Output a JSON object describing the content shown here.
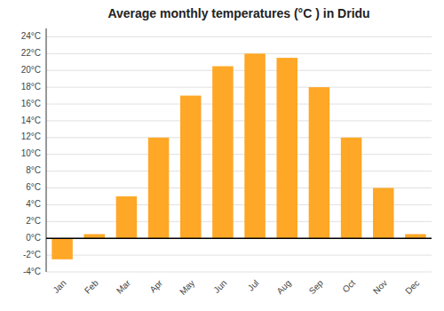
{
  "chart_data": {
    "type": "bar",
    "title": "Average monthly temperatures (°C ) in Dridu",
    "categories": [
      "Jan",
      "Feb",
      "Mar",
      "Apr",
      "May",
      "Jun",
      "Jul",
      "Aug",
      "Sep",
      "Oct",
      "Nov",
      "Dec"
    ],
    "values": [
      -2.5,
      0.5,
      5.0,
      12.0,
      17.0,
      20.5,
      22.0,
      21.5,
      18.0,
      12.0,
      6.0,
      0.5
    ],
    "color": "#FFA726",
    "ylim": [
      -4,
      25
    ],
    "yticks": [
      {
        "value": -4,
        "label": "-4°C"
      },
      {
        "value": -2,
        "label": "-2°C"
      },
      {
        "value": 0,
        "label": "0°C"
      },
      {
        "value": 2,
        "label": "2°C"
      },
      {
        "value": 4,
        "label": "4°C"
      },
      {
        "value": 6,
        "label": "6°C"
      },
      {
        "value": 8,
        "label": "8°C"
      },
      {
        "value": 10,
        "label": "10°C"
      },
      {
        "value": 12,
        "label": "12°C"
      },
      {
        "value": 14,
        "label": "14°C"
      },
      {
        "value": 16,
        "label": "16°C"
      },
      {
        "value": 18,
        "label": "18°C"
      },
      {
        "value": 20,
        "label": "20°C"
      },
      {
        "value": 22,
        "label": "22°C"
      },
      {
        "value": 24,
        "label": "24°C"
      }
    ],
    "grid": true
  }
}
